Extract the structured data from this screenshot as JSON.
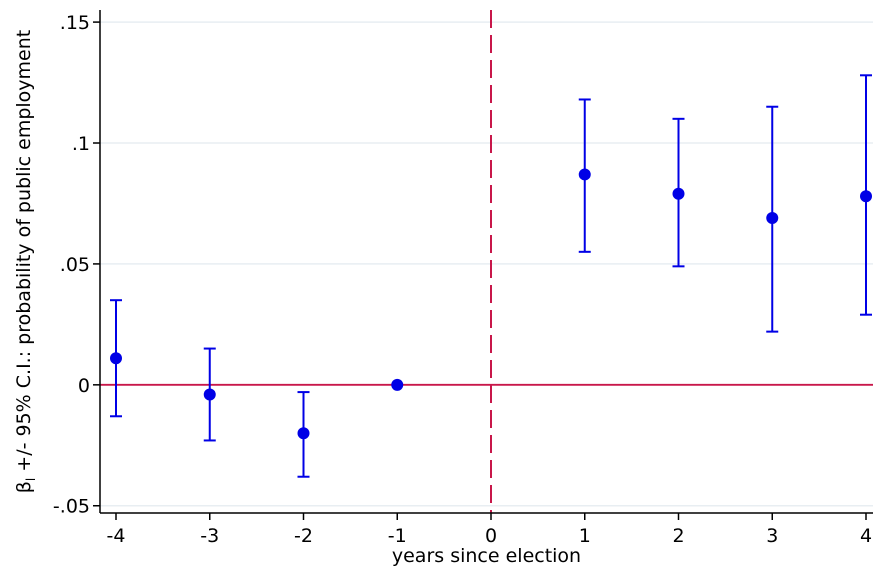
{
  "chart_data": {
    "type": "scatter",
    "title": "",
    "xlabel": "years since election",
    "ylabel": {
      "symbol": "β",
      "subscript": "l",
      "rest": " +/- 95% C.I.: probability of public employment"
    },
    "x_ticks": [
      "-4",
      "-3",
      "-2",
      "-1",
      "0",
      "1",
      "2",
      "3",
      "4"
    ],
    "y_ticks": [
      {
        "value": -0.05,
        "label": "-.05"
      },
      {
        "value": 0,
        "label": "0"
      },
      {
        "value": 0.05,
        "label": ".05"
      },
      {
        "value": 0.1,
        "label": ".1"
      },
      {
        "value": 0.15,
        "label": ".15"
      }
    ],
    "xlim": [
      -4,
      4
    ],
    "ylim": [
      -0.053,
      0.155
    ],
    "grid": "horizontal",
    "reference_lines": {
      "horizontal_y": 0,
      "vertical_x": 0,
      "vertical_style": "dashed"
    },
    "points": [
      {
        "x": -4,
        "y": 0.011,
        "lo": -0.013,
        "hi": 0.035
      },
      {
        "x": -3,
        "y": -0.004,
        "lo": -0.023,
        "hi": 0.015
      },
      {
        "x": -2,
        "y": -0.02,
        "lo": -0.038,
        "hi": -0.003
      },
      {
        "x": -1,
        "y": 0.0,
        "lo": null,
        "hi": null
      },
      {
        "x": 1,
        "y": 0.087,
        "lo": 0.055,
        "hi": 0.118
      },
      {
        "x": 2,
        "y": 0.079,
        "lo": 0.049,
        "hi": 0.11
      },
      {
        "x": 3,
        "y": 0.069,
        "lo": 0.022,
        "hi": 0.115
      },
      {
        "x": 4,
        "y": 0.078,
        "lo": 0.029,
        "hi": 0.128
      }
    ],
    "colors": {
      "points": "#0000e6",
      "reference": "#c8174a",
      "grid": "#e8eef2",
      "axis": "#000000"
    }
  }
}
